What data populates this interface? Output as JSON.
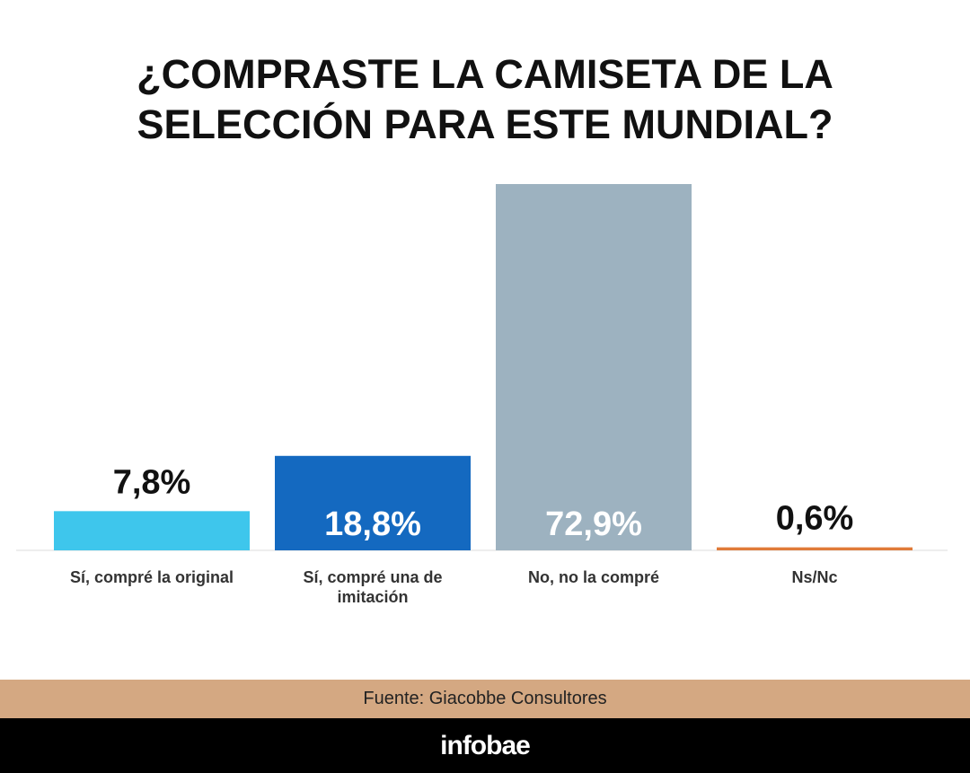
{
  "chart_data": {
    "type": "bar",
    "title": "¿COMPRASTE LA CAMISETA DE LA SELECCIÓN PARA ESTE MUNDIAL?",
    "categories": [
      "Sí, compré la original",
      "Sí, compré una de imitación",
      "No, no la compré",
      "Ns/Nc"
    ],
    "values": [
      7.8,
      18.8,
      72.9,
      0.6
    ],
    "value_labels": [
      "7,8%",
      "18,8%",
      "72,9%",
      "0,6%"
    ],
    "colors": [
      "#3ec6ec",
      "#1469c0",
      "#9db2c0",
      "#e07b39"
    ],
    "source": "Fuente: Giacobbe Consultores",
    "brand": "infobae"
  }
}
